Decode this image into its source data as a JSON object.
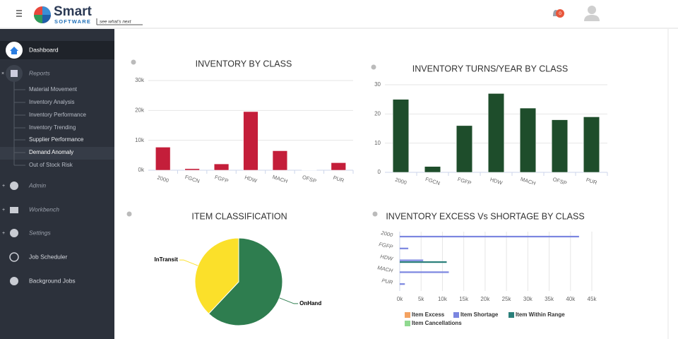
{
  "header": {
    "logo_title": "Smart",
    "logo_subtitle": "SOFTWARE",
    "tagline": "see what's next",
    "notification_count": 0
  },
  "sidebar": {
    "items": [
      {
        "label": "Dashboard"
      },
      {
        "label": "Reports"
      },
      {
        "label": "Material Movement"
      },
      {
        "label": "Inventory Analysis"
      },
      {
        "label": "Inventory Performance"
      },
      {
        "label": "Inventory Trending"
      },
      {
        "label": "Supplier Performance"
      },
      {
        "label": "Demand Anomaly"
      },
      {
        "label": "Out of Stock Risk"
      },
      {
        "label": "Admin"
      },
      {
        "label": "Workbench"
      },
      {
        "label": "Settings"
      },
      {
        "label": "Job Scheduler"
      },
      {
        "label": "Background Jobs"
      }
    ]
  },
  "chart_data": [
    {
      "type": "bar",
      "title": "INVENTORY BY CLASS",
      "categories": [
        "2000",
        "FGCN",
        "FGFP",
        "HDW",
        "MACH",
        "OFSP",
        "PUR"
      ],
      "values": [
        7700,
        500,
        2100,
        19600,
        6500,
        100,
        2500
      ],
      "color": "#c41e3a",
      "ylim": [
        0,
        30000
      ],
      "yticks": [
        {
          "value": 0,
          "label": "0k"
        },
        {
          "value": 10000,
          "label": "10k"
        },
        {
          "value": 20000,
          "label": "20k"
        },
        {
          "value": 30000,
          "label": "30k"
        }
      ],
      "grid": true
    },
    {
      "type": "bar",
      "title": "INVENTORY TURNS/YEAR BY CLASS",
      "categories": [
        "2000",
        "FGCN",
        "FGFP",
        "HDW",
        "MACH",
        "OFSP",
        "PUR"
      ],
      "values": [
        25,
        2,
        16,
        27,
        22,
        18,
        19
      ],
      "color": "#1e4d2b",
      "ylim": [
        0,
        30
      ],
      "yticks": [
        0,
        10,
        20,
        30
      ],
      "grid": true
    },
    {
      "type": "pie",
      "title": "ITEM CLASSIFICATION",
      "categories": [
        "OnHand",
        "InTransit"
      ],
      "values": [
        62,
        38
      ],
      "colors": [
        "#2e7d4f",
        "#fbe02a"
      ]
    },
    {
      "type": "hbar",
      "title": "INVENTORY EXCESS Vs SHORTAGE BY CLASS",
      "categories": [
        "2000",
        "FGFP",
        "HDW",
        "MACH",
        "PUR"
      ],
      "series": [
        {
          "name": "Item Excess",
          "color": "#f4a261",
          "values": [
            0,
            0,
            0,
            0,
            0
          ]
        },
        {
          "name": "Item Shortage",
          "color": "#7b86e0",
          "values": [
            42000,
            2000,
            5500,
            11500,
            1200
          ]
        },
        {
          "name": "Item Within Range",
          "color": "#2a7f7a",
          "values": [
            0,
            0,
            11000,
            0,
            0
          ]
        },
        {
          "name": "Item Cancellations",
          "color": "#90d990",
          "values": [
            0,
            0,
            0,
            0,
            0
          ]
        }
      ],
      "xlim": [
        0,
        45000
      ],
      "xticks": [
        {
          "value": 0,
          "label": "0k"
        },
        {
          "value": 5000,
          "label": "5k"
        },
        {
          "value": 10000,
          "label": "10k"
        },
        {
          "value": 15000,
          "label": "15k"
        },
        {
          "value": 20000,
          "label": "20k"
        },
        {
          "value": 25000,
          "label": "25k"
        },
        {
          "value": 30000,
          "label": "30k"
        },
        {
          "value": 35000,
          "label": "35k"
        },
        {
          "value": 40000,
          "label": "40k"
        },
        {
          "value": 45000,
          "label": "45k"
        }
      ],
      "grid": true
    }
  ]
}
